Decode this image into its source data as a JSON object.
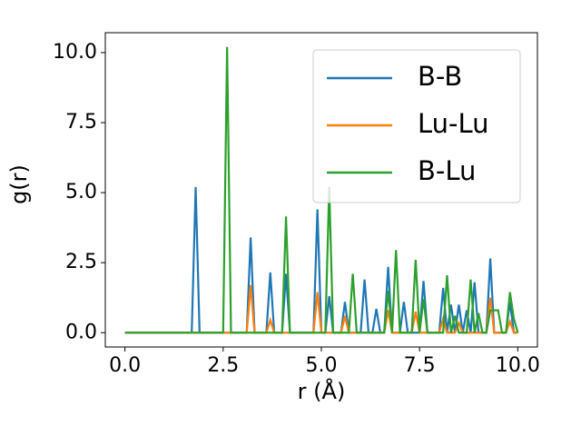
{
  "chart_data": {
    "type": "line",
    "x_label": "r (Å)",
    "y_label": "g(r)",
    "x": [
      0,
      0.1,
      0.2,
      0.3,
      0.4,
      0.5,
      0.6,
      0.7,
      0.8,
      0.9,
      1,
      1.1,
      1.2,
      1.3,
      1.4,
      1.5,
      1.6,
      1.7,
      1.8,
      1.9,
      2,
      2.1,
      2.2,
      2.3,
      2.4,
      2.5,
      2.6,
      2.7,
      2.8,
      2.9,
      3,
      3.1,
      3.2,
      3.3,
      3.4,
      3.5,
      3.6,
      3.7,
      3.8,
      3.9,
      4,
      4.1,
      4.2,
      4.3,
      4.4,
      4.5,
      4.6,
      4.7,
      4.8,
      4.9,
      5,
      5.1,
      5.2,
      5.3,
      5.4,
      5.5,
      5.6,
      5.7,
      5.8,
      5.9,
      6,
      6.1,
      6.2,
      6.3,
      6.4,
      6.5,
      6.6,
      6.7,
      6.8,
      6.9,
      7,
      7.1,
      7.2,
      7.3,
      7.4,
      7.5,
      7.6,
      7.7,
      7.8,
      7.9,
      8,
      8.1,
      8.2,
      8.3,
      8.4,
      8.5,
      8.6,
      8.7,
      8.8,
      8.9,
      9,
      9.1,
      9.2,
      9.3,
      9.4,
      9.5,
      9.6,
      9.7,
      9.8,
      9.9,
      10
    ],
    "series": [
      {
        "name": "B-B",
        "color": "#1f77b4",
        "values": [
          0,
          0,
          0,
          0,
          0,
          0,
          0,
          0,
          0,
          0,
          0,
          0,
          0,
          0,
          0,
          0,
          0,
          0,
          5.2,
          0,
          0,
          0,
          0,
          0,
          0,
          0,
          0,
          0,
          0,
          0,
          0,
          0,
          3.4,
          0,
          0,
          0,
          0,
          2.15,
          0,
          0,
          0,
          2.1,
          0,
          0,
          0,
          0,
          0,
          0,
          0,
          4.4,
          0,
          0,
          1.3,
          0,
          0,
          0,
          1.1,
          0,
          0,
          0,
          0,
          1.9,
          0,
          0,
          0.85,
          0,
          0,
          2.35,
          0,
          0,
          0,
          1.1,
          0,
          0,
          0,
          0,
          1.85,
          0,
          0,
          0,
          0,
          1.6,
          0,
          1.0,
          0,
          1.0,
          0,
          0.8,
          0,
          1.8,
          0,
          0,
          0,
          2.65,
          0,
          0,
          0,
          0,
          1.1,
          0,
          0
        ]
      },
      {
        "name": "Lu-Lu",
        "color": "#ff7f0e",
        "values": [
          0,
          0,
          0,
          0,
          0,
          0,
          0,
          0,
          0,
          0,
          0,
          0,
          0,
          0,
          0,
          0,
          0,
          0,
          0,
          0,
          0,
          0,
          0,
          0,
          0,
          0,
          0,
          0,
          0,
          0,
          0,
          0,
          1.7,
          0,
          0,
          0,
          0,
          0.45,
          0,
          0,
          0,
          0,
          0,
          0,
          0,
          0,
          0,
          0,
          0,
          1.45,
          0,
          0,
          0,
          0,
          0,
          0,
          0.6,
          0,
          0,
          0,
          0,
          0,
          0,
          0,
          0,
          0,
          0,
          0.8,
          0,
          0,
          0,
          0,
          0,
          0,
          0.75,
          0,
          0,
          0,
          0,
          0,
          0,
          0.5,
          0,
          0,
          0,
          0.35,
          0,
          0,
          0,
          0,
          0,
          0,
          0,
          1.25,
          0,
          0,
          0,
          0,
          0.4,
          0,
          0
        ]
      },
      {
        "name": "B-Lu",
        "color": "#2ca02c",
        "values": [
          0,
          0,
          0,
          0,
          0,
          0,
          0,
          0,
          0,
          0,
          0,
          0,
          0,
          0,
          0,
          0,
          0,
          0,
          0,
          0,
          0,
          0,
          0,
          0,
          0,
          0,
          10.2,
          0,
          0,
          0,
          0,
          0,
          0,
          0,
          0,
          0,
          0,
          0,
          0,
          0,
          0,
          4.15,
          0,
          0,
          0,
          0,
          0,
          0,
          0,
          0,
          0,
          0,
          5.2,
          0,
          0,
          0,
          0,
          0,
          2.1,
          0,
          0,
          0,
          0,
          0,
          0,
          0,
          0,
          1.5,
          0,
          2.95,
          0,
          0,
          0,
          0,
          2.6,
          0,
          1.2,
          0,
          0,
          0,
          0,
          0,
          2.05,
          0,
          0.6,
          0,
          0,
          0,
          1.9,
          0,
          0.7,
          0,
          0,
          0.8,
          0.8,
          0.8,
          0,
          0,
          1.45,
          0.5,
          0
        ]
      }
    ],
    "xlim": [
      -0.5,
      10.5
    ],
    "xticks": [
      {
        "value": 0,
        "label": "0.0"
      },
      2.5,
      {
        "value": 5,
        "label": "5.0"
      },
      7.5,
      {
        "value": 10,
        "label": "10.0"
      }
    ],
    "ylim": [
      -0.51,
      10.71
    ],
    "yticks": [
      {
        "value": 0,
        "label": "0.0"
      },
      2.5,
      {
        "value": 5,
        "label": "5.0"
      },
      7.5,
      {
        "value": 10,
        "label": "10.0"
      }
    ],
    "legend": "upper right",
    "grid": false
  }
}
